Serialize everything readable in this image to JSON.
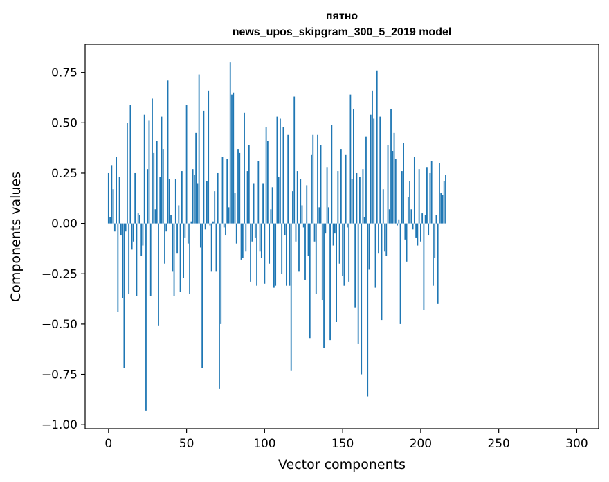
{
  "chart_data": {
    "type": "bar",
    "title_line1": "пятно",
    "title_line2": "news_upos_skipgram_300_5_2019 model",
    "xlabel": "Vector components",
    "ylabel": "Components values",
    "xlim": [
      -15,
      314
    ],
    "ylim": [
      -1.02,
      0.89
    ],
    "xticks": [
      0,
      50,
      100,
      150,
      200,
      250,
      300
    ],
    "xtick_labels": [
      "0",
      "50",
      "100",
      "150",
      "200",
      "250",
      "300"
    ],
    "yticks": [
      -1.0,
      -0.75,
      -0.5,
      -0.25,
      0.0,
      0.25,
      0.5,
      0.75
    ],
    "ytick_labels": [
      "−1.00",
      "−0.75",
      "−0.50",
      "−0.25",
      "0.00",
      "0.25",
      "0.50",
      "0.75"
    ],
    "color": "#1f77b4",
    "values": [
      0.25,
      0.03,
      0.29,
      0.17,
      -0.04,
      0.33,
      -0.44,
      0.23,
      -0.06,
      -0.37,
      -0.72,
      -0.04,
      0.5,
      -0.35,
      0.59,
      -0.13,
      -0.09,
      0.25,
      -0.36,
      0.05,
      0.04,
      -0.16,
      -0.11,
      0.54,
      -0.93,
      0.27,
      0.51,
      -0.36,
      0.62,
      0.35,
      0.07,
      0.41,
      -0.51,
      0.23,
      0.53,
      0.37,
      -0.2,
      -0.04,
      0.71,
      0.22,
      0.04,
      -0.24,
      -0.36,
      0.22,
      -0.15,
      0.09,
      -0.34,
      0.26,
      -0.27,
      -0.07,
      0.59,
      -0.1,
      -0.35,
      0.01,
      0.27,
      0.24,
      0.45,
      0.2,
      0.74,
      -0.12,
      -0.72,
      0.56,
      -0.03,
      0.21,
      0.66,
      -0.01,
      -0.24,
      0.01,
      0.16,
      -0.24,
      0.25,
      -0.82,
      -0.5,
      0.33,
      -0.02,
      -0.06,
      0.32,
      0.08,
      0.8,
      0.64,
      0.65,
      0.15,
      -0.1,
      0.37,
      0.35,
      -0.18,
      -0.17,
      0.55,
      -0.14,
      0.26,
      0.39,
      -0.29,
      -0.09,
      0.2,
      -0.07,
      -0.31,
      0.31,
      -0.14,
      -0.17,
      0.2,
      -0.3,
      0.48,
      0.41,
      -0.2,
      0.07,
      0.18,
      -0.32,
      -0.31,
      0.53,
      0.23,
      0.52,
      -0.25,
      0.48,
      -0.06,
      -0.31,
      0.44,
      -0.31,
      -0.73,
      0.16,
      0.63,
      -0.09,
      0.26,
      -0.24,
      0.22,
      0.09,
      -0.02,
      -0.28,
      0.19,
      -0.16,
      -0.57,
      0.34,
      0.44,
      -0.09,
      -0.35,
      0.44,
      0.08,
      0.39,
      -0.38,
      -0.62,
      -0.05,
      0.28,
      0.08,
      -0.58,
      0.49,
      -0.11,
      -0.05,
      -0.49,
      0.26,
      -0.2,
      0.37,
      -0.26,
      -0.31,
      0.34,
      -0.02,
      -0.29,
      0.64,
      0.22,
      0.57,
      -0.42,
      0.25,
      -0.6,
      0.23,
      -0.75,
      0.27,
      0.03,
      0.43,
      -0.86,
      -0.23,
      0.54,
      0.66,
      0.52,
      -0.32,
      0.76,
      -0.15,
      0.53,
      -0.48,
      0.17,
      -0.14,
      -0.16,
      0.39,
      0.07,
      0.57,
      0.36,
      0.45,
      0.32,
      -0.01,
      0.02,
      -0.5,
      0.26,
      0.4,
      -0.08,
      -0.19,
      0.13,
      0.21,
      0.07,
      -0.03,
      0.33,
      -0.07,
      -0.11,
      0.27,
      -0.09,
      0.05,
      -0.43,
      0.04,
      0.28,
      -0.06,
      0.25,
      0.31,
      -0.31,
      -0.17,
      0.04,
      -0.4,
      0.3,
      0.15,
      0.14,
      0.21,
      0.24
    ]
  }
}
